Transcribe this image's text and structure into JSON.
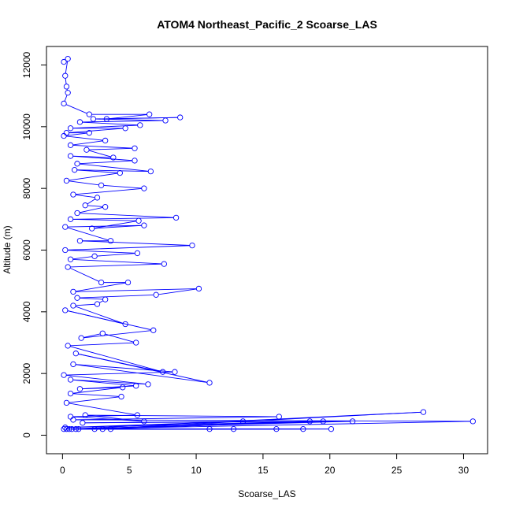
{
  "chart_data": {
    "type": "line",
    "title": "ATOM4 Northeast_Pacific_2 Scoarse_LAS",
    "xlabel": "Scoarse_LAS",
    "ylabel": "Altitude (m)",
    "xlim": [
      -1.2,
      31.8
    ],
    "ylim": [
      -600,
      12600
    ],
    "xticks": [
      0,
      5,
      10,
      15,
      20,
      25,
      30
    ],
    "yticks": [
      0,
      2000,
      4000,
      6000,
      8000,
      10000,
      12000
    ],
    "grid": false,
    "legend": "none",
    "series_color": "#0000ff",
    "marker": "open-circle",
    "series": [
      {
        "values": [
          [
            0.1,
            12100
          ],
          [
            0.4,
            12200
          ],
          [
            0.2,
            11650
          ],
          [
            0.3,
            11300
          ],
          [
            0.4,
            11100
          ],
          [
            0.1,
            10750
          ],
          [
            2.0,
            10400
          ],
          [
            6.5,
            10400
          ],
          [
            3.3,
            10250
          ],
          [
            8.8,
            10300
          ],
          [
            2.3,
            10250
          ],
          [
            7.7,
            10200
          ],
          [
            1.3,
            10150
          ],
          [
            5.8,
            10050
          ],
          [
            0.6,
            9950
          ],
          [
            4.7,
            9950
          ],
          [
            0.3,
            9800
          ],
          [
            2.0,
            9800
          ],
          [
            0.1,
            9700
          ],
          [
            3.2,
            9550
          ],
          [
            0.6,
            9400
          ],
          [
            5.4,
            9300
          ],
          [
            1.8,
            9250
          ],
          [
            3.8,
            9000
          ],
          [
            0.6,
            9050
          ],
          [
            5.4,
            8900
          ],
          [
            1.1,
            8800
          ],
          [
            6.6,
            8550
          ],
          [
            0.9,
            8600
          ],
          [
            4.3,
            8500
          ],
          [
            0.3,
            8250
          ],
          [
            2.9,
            8100
          ],
          [
            6.1,
            8000
          ],
          [
            0.8,
            7800
          ],
          [
            2.6,
            7700
          ],
          [
            1.7,
            7450
          ],
          [
            3.2,
            7400
          ],
          [
            1.1,
            7200
          ],
          [
            8.5,
            7050
          ],
          [
            0.6,
            7000
          ],
          [
            5.7,
            6950
          ],
          [
            2.2,
            6700
          ],
          [
            6.1,
            6800
          ],
          [
            0.2,
            6750
          ],
          [
            3.6,
            6300
          ],
          [
            1.3,
            6300
          ],
          [
            9.7,
            6150
          ],
          [
            0.2,
            6000
          ],
          [
            5.6,
            5900
          ],
          [
            2.4,
            5800
          ],
          [
            0.6,
            5700
          ],
          [
            7.6,
            5550
          ],
          [
            0.4,
            5450
          ],
          [
            2.9,
            4950
          ],
          [
            4.9,
            4950
          ],
          [
            0.8,
            4650
          ],
          [
            10.2,
            4750
          ],
          [
            7.0,
            4550
          ],
          [
            1.1,
            4450
          ],
          [
            3.2,
            4400
          ],
          [
            2.6,
            4250
          ],
          [
            0.8,
            4200
          ],
          [
            4.7,
            3600
          ],
          [
            0.2,
            4050
          ],
          [
            6.8,
            3400
          ],
          [
            1.4,
            3150
          ],
          [
            3.0,
            3300
          ],
          [
            5.5,
            3000
          ],
          [
            0.4,
            2900
          ],
          [
            7.5,
            2050
          ],
          [
            1.0,
            2650
          ],
          [
            11.0,
            1700
          ],
          [
            0.8,
            2300
          ],
          [
            8.4,
            2050
          ],
          [
            0.1,
            1950
          ],
          [
            6.4,
            1650
          ],
          [
            0.6,
            1800
          ],
          [
            5.5,
            1600
          ],
          [
            1.3,
            1500
          ],
          [
            4.5,
            1550
          ],
          [
            0.6,
            1350
          ],
          [
            4.4,
            1250
          ],
          [
            0.3,
            1050
          ],
          [
            5.6,
            650
          ],
          [
            0.6,
            600
          ],
          [
            6.1,
            450
          ],
          [
            1.7,
            650
          ],
          [
            16.2,
            600
          ],
          [
            0.8,
            500
          ],
          [
            30.7,
            450
          ],
          [
            1.0,
            200
          ],
          [
            18.5,
            450
          ],
          [
            0.2,
            250
          ],
          [
            13.5,
            450
          ],
          [
            1.5,
            400
          ],
          [
            21.7,
            450
          ],
          [
            0.5,
            200
          ],
          [
            27.0,
            750
          ],
          [
            2.4,
            200
          ],
          [
            19.5,
            450
          ],
          [
            3.0,
            200
          ],
          [
            11.0,
            200
          ],
          [
            0.3,
            200
          ],
          [
            16.0,
            200
          ],
          [
            3.6,
            200
          ],
          [
            12.8,
            200
          ],
          [
            0.7,
            200
          ],
          [
            20.1,
            200
          ],
          [
            1.2,
            200
          ],
          [
            18.0,
            200
          ],
          [
            0.1,
            200
          ]
        ]
      }
    ]
  }
}
